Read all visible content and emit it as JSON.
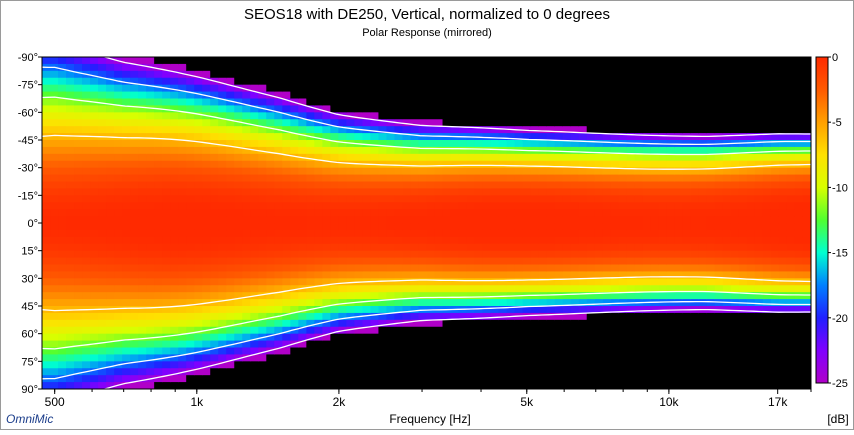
{
  "chart_data": {
    "type": "heatmap",
    "title": "SEOS18 with DE250, Vertical, normalized to 0 degrees",
    "subtitle": "Polar Response (mirrored)",
    "xlabel": "Frequency [Hz]",
    "xscale": "log",
    "xlim": [
      470,
      20000
    ],
    "x_ticks": [
      {
        "value": 500,
        "label": "500"
      },
      {
        "value": 1000,
        "label": "1k"
      },
      {
        "value": 2000,
        "label": "2k"
      },
      {
        "value": 5000,
        "label": "5k"
      },
      {
        "value": 10000,
        "label": "10k"
      },
      {
        "value": 17000,
        "label": "17k"
      }
    ],
    "ylim": [
      -90,
      90
    ],
    "y_ticks": [
      {
        "value": -90,
        "label": "-90°"
      },
      {
        "value": -75,
        "label": "-75°"
      },
      {
        "value": -60,
        "label": "-60°"
      },
      {
        "value": -45,
        "label": "-45°"
      },
      {
        "value": -30,
        "label": "-30°"
      },
      {
        "value": -15,
        "label": "-15°"
      },
      {
        "value": 0,
        "label": "0°"
      },
      {
        "value": 15,
        "label": "15°"
      },
      {
        "value": 30,
        "label": "30°"
      },
      {
        "value": 45,
        "label": "45°"
      },
      {
        "value": 60,
        "label": "60°"
      },
      {
        "value": 75,
        "label": "75°"
      },
      {
        "value": 90,
        "label": "90°"
      }
    ],
    "colorbar": {
      "min": -25,
      "max": 0,
      "unit": "[dB]",
      "ticks": [
        {
          "value": 0,
          "label": "0"
        },
        {
          "value": -5,
          "label": "-5"
        },
        {
          "value": -10,
          "label": "-10"
        },
        {
          "value": -15,
          "label": "-15"
        },
        {
          "value": -20,
          "label": "-20"
        },
        {
          "value": -25,
          "label": "-25"
        }
      ],
      "stops": [
        {
          "value": 0,
          "color": "#ff2a00"
        },
        {
          "value": -2.5,
          "color": "#ff5a00"
        },
        {
          "value": -5,
          "color": "#ffa000"
        },
        {
          "value": -7.5,
          "color": "#ffe000"
        },
        {
          "value": -10,
          "color": "#d8ff00"
        },
        {
          "value": -12.5,
          "color": "#50ff30"
        },
        {
          "value": -15,
          "color": "#00ffd0"
        },
        {
          "value": -17.5,
          "color": "#0080ff"
        },
        {
          "value": -20,
          "color": "#2020ff"
        },
        {
          "value": -22.5,
          "color": "#8000ff"
        },
        {
          "value": -25,
          "color": "#b000c8"
        }
      ],
      "floor_color": "#000000"
    },
    "contours_db": [
      -6,
      -12,
      -18,
      -24
    ],
    "contour_color": "#ffffff",
    "half_angle_minus6db": [
      {
        "freq": 500,
        "angle": 50
      },
      {
        "freq": 700,
        "angle": 45
      },
      {
        "freq": 1000,
        "angle": 42
      },
      {
        "freq": 1500,
        "angle": 38
      },
      {
        "freq": 2000,
        "angle": 34
      },
      {
        "freq": 3000,
        "angle": 31
      },
      {
        "freq": 5000,
        "angle": 30
      },
      {
        "freq": 8000,
        "angle": 30
      },
      {
        "freq": 12000,
        "angle": 30
      },
      {
        "freq": 17000,
        "angle": 31
      }
    ],
    "grid": false,
    "legend": "colorbar-right",
    "watermark": "OmniMic"
  }
}
